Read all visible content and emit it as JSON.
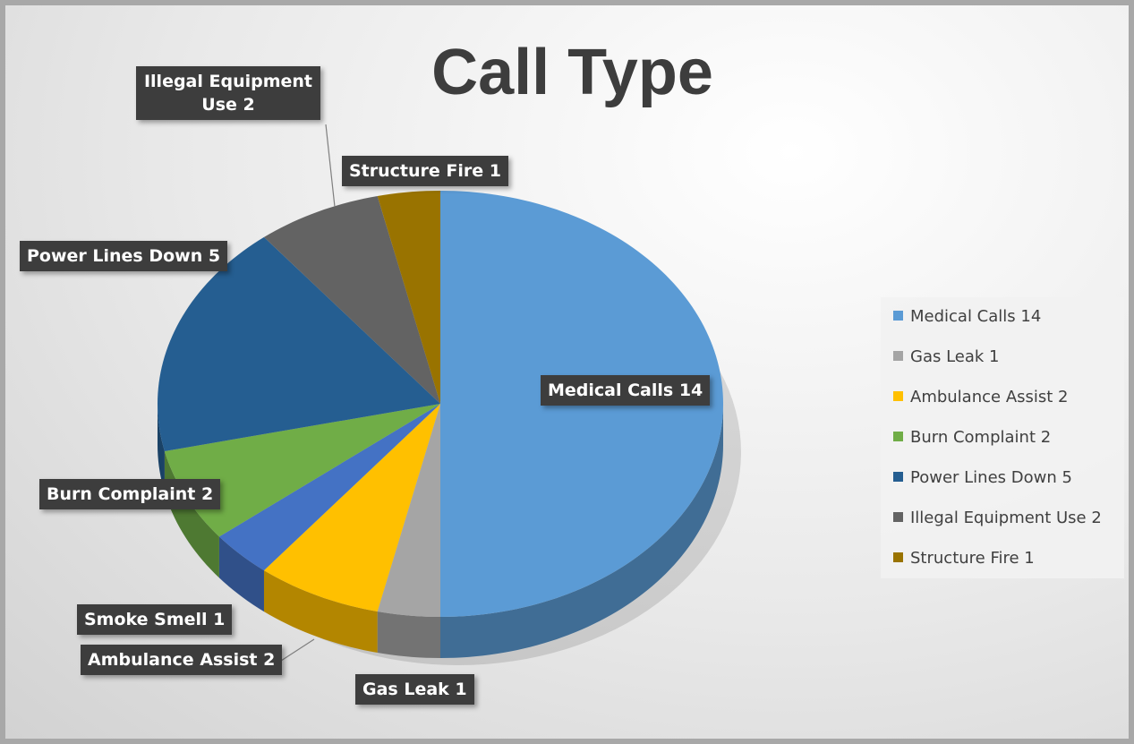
{
  "chart_data": {
    "type": "pie3d",
    "title": "Call Type",
    "values": [
      14,
      1,
      2,
      1,
      2,
      5,
      2,
      1
    ],
    "value_labels": [
      "Medical Calls 14",
      "Gas Leak 1",
      "Ambulance Assist 2",
      "Smoke Smell 1",
      "Burn Complaint 2",
      "Power Lines Down 5",
      "Illegal Equipment Use 2",
      "Structure Fire 1"
    ],
    "colors": [
      "#5b9bd5",
      "#a5a5a5",
      "#ffc000",
      "#4472c4",
      "#70ad47",
      "#255e91",
      "#636363",
      "#997300"
    ],
    "legend": [
      {
        "label": "Medical Calls 14",
        "color": "#5b9bd5"
      },
      {
        "label": "Gas Leak 1",
        "color": "#a5a5a5"
      },
      {
        "label": "Ambulance Assist 2",
        "color": "#ffc000"
      },
      {
        "label": "Burn Complaint 2",
        "color": "#70ad47"
      },
      {
        "label": "Power Lines Down 5",
        "color": "#255e91"
      },
      {
        "label": "Illegal Equipment Use 2",
        "color": "#636363"
      },
      {
        "label": "Structure Fire 1",
        "color": "#997300"
      }
    ]
  }
}
